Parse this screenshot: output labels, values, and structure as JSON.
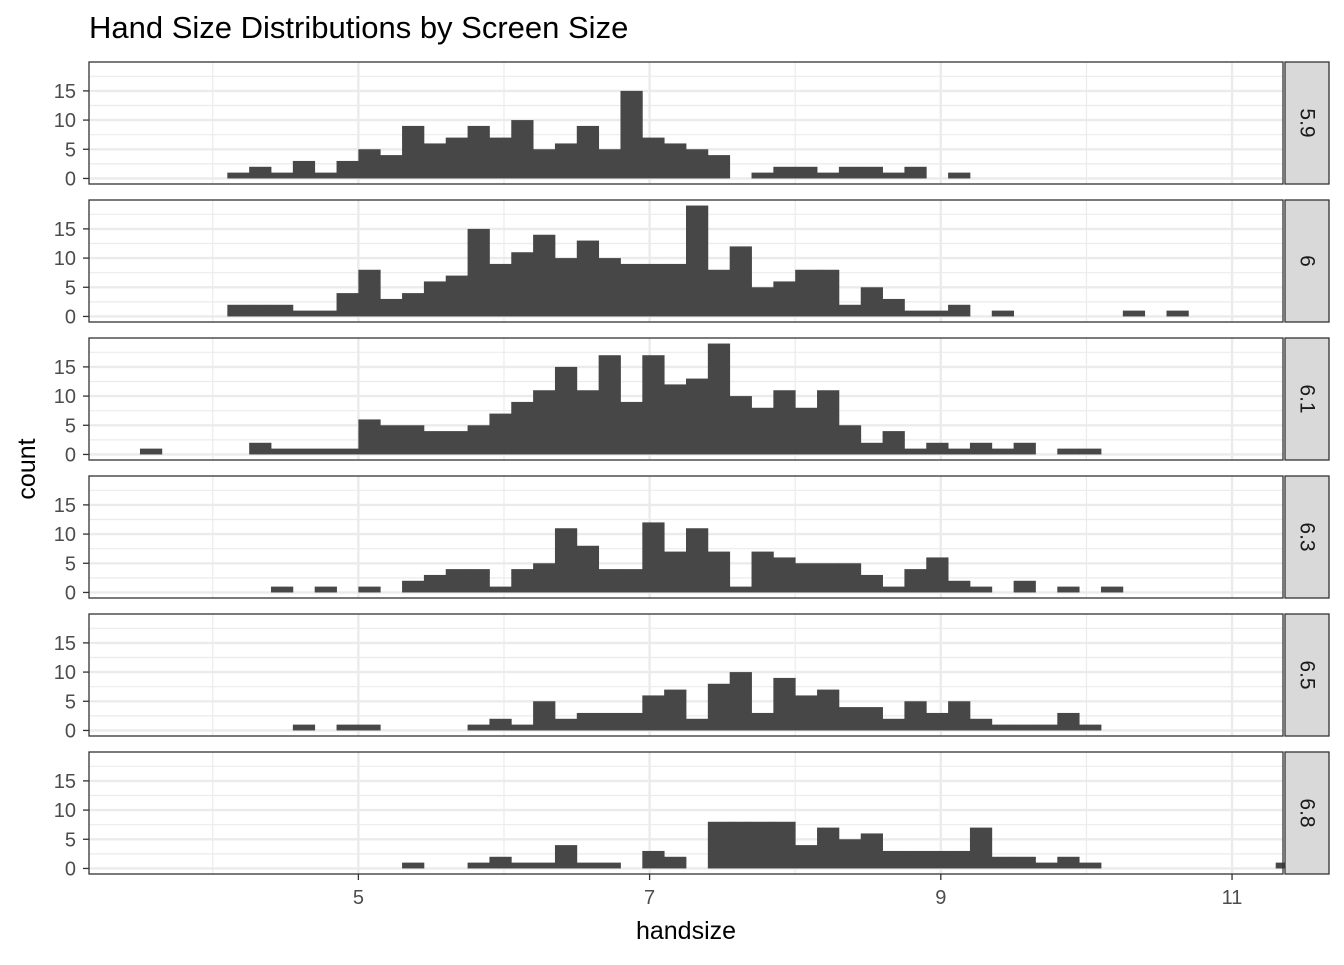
{
  "chart_data": {
    "type": "bar",
    "subtype": "faceted-histogram",
    "title": "Hand Size Distributions by Screen Size",
    "xlabel": "handsize",
    "ylabel": "count",
    "xlim": [
      3.15,
      11.35
    ],
    "ylim": [
      -0.95,
      19.95
    ],
    "x_ticks": [
      5,
      7,
      9,
      11
    ],
    "x_minor_gridlines": [
      4,
      6,
      8,
      10
    ],
    "y_ticks": [
      0,
      5,
      10,
      15
    ],
    "y_minor_gridlines": [
      2.5,
      7.5,
      12.5,
      17.5
    ],
    "bin_width": 0.15,
    "bin_start": 3.5,
    "grid": true,
    "theme": "bw",
    "bar_color": "#474747",
    "strip_fill": "#d9d9d9",
    "panels": [
      {
        "label": "5.9",
        "counts": [
          0,
          0,
          0,
          0,
          1,
          2,
          1,
          3,
          1,
          3,
          5,
          4,
          9,
          6,
          7,
          9,
          7,
          10,
          5,
          6,
          9,
          5,
          15,
          7,
          6,
          5,
          4,
          0,
          1,
          2,
          2,
          1,
          2,
          2,
          1,
          2,
          0,
          1,
          0,
          0,
          0,
          0,
          0,
          0,
          0,
          0,
          0,
          0,
          0,
          0,
          0,
          0,
          0
        ]
      },
      {
        "label": "6",
        "counts": [
          0,
          0,
          0,
          0,
          2,
          2,
          2,
          1,
          1,
          4,
          8,
          3,
          4,
          6,
          7,
          15,
          9,
          11,
          14,
          10,
          13,
          10,
          9,
          9,
          9,
          19,
          8,
          12,
          5,
          6,
          8,
          8,
          2,
          5,
          3,
          1,
          1,
          2,
          0,
          1,
          0,
          0,
          0,
          0,
          0,
          1,
          0,
          1,
          0,
          0,
          0,
          0,
          0
        ]
      },
      {
        "label": "6.1",
        "counts": [
          1,
          0,
          0,
          0,
          0,
          2,
          1,
          1,
          1,
          1,
          6,
          5,
          5,
          4,
          4,
          5,
          7,
          9,
          11,
          15,
          11,
          17,
          9,
          17,
          12,
          13,
          19,
          10,
          8,
          11,
          8,
          11,
          5,
          2,
          4,
          1,
          2,
          1,
          2,
          1,
          2,
          0,
          1,
          1,
          0,
          0,
          0,
          0,
          0,
          0,
          0,
          0,
          0
        ]
      },
      {
        "label": "6.3",
        "counts": [
          0,
          0,
          0,
          0,
          0,
          0,
          1,
          0,
          1,
          0,
          1,
          0,
          2,
          3,
          4,
          4,
          1,
          4,
          5,
          11,
          8,
          4,
          4,
          12,
          7,
          11,
          7,
          1,
          7,
          6,
          5,
          5,
          5,
          3,
          1,
          4,
          6,
          2,
          1,
          0,
          2,
          0,
          1,
          0,
          1,
          0,
          0,
          0,
          0,
          0,
          0,
          0,
          0
        ]
      },
      {
        "label": "6.5",
        "counts": [
          0,
          0,
          0,
          0,
          0,
          0,
          0,
          1,
          0,
          1,
          1,
          0,
          0,
          0,
          0,
          1,
          2,
          1,
          5,
          2,
          3,
          3,
          3,
          6,
          7,
          2,
          8,
          10,
          3,
          9,
          6,
          7,
          4,
          4,
          2,
          5,
          3,
          5,
          2,
          1,
          1,
          1,
          3,
          1,
          0,
          0,
          0,
          0,
          0,
          0,
          0,
          0,
          0
        ]
      },
      {
        "label": "6.8",
        "counts": [
          0,
          0,
          0,
          0,
          0,
          0,
          0,
          0,
          0,
          0,
          0,
          0,
          1,
          0,
          0,
          1,
          2,
          1,
          1,
          4,
          1,
          1,
          0,
          3,
          2,
          0,
          8,
          8,
          8,
          8,
          4,
          7,
          5,
          6,
          3,
          3,
          3,
          3,
          7,
          2,
          2,
          1,
          2,
          1,
          0,
          0,
          0,
          0,
          0,
          0,
          0,
          0,
          1
        ]
      }
    ]
  }
}
